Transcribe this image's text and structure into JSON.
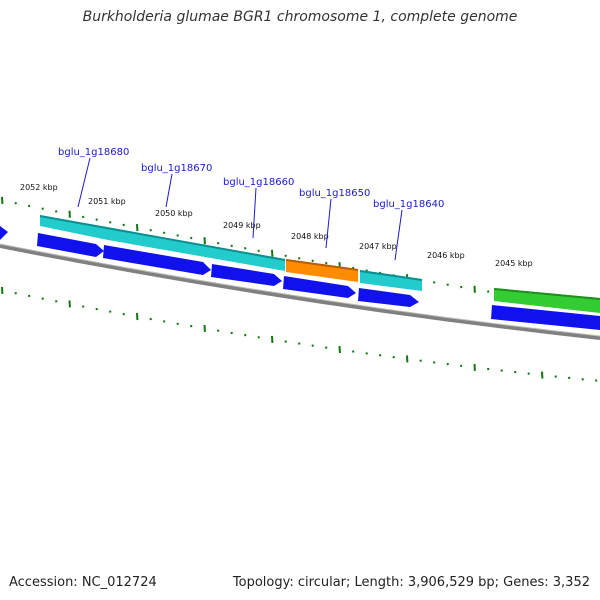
{
  "title": "Burkholderia glumae BGR1 chromosome 1, complete genome",
  "footer": {
    "accession": "Accession: NC_012724",
    "stats": "Topology: circular; Length: 3,906,529 bp; Genes: 3,352"
  },
  "colors": {
    "backbone": "#808080",
    "cds": "#1111ee",
    "gene_cyan": "#22cccc",
    "gene_orange": "#ff8c00",
    "gene_green": "#33cc33",
    "tick": "#117711",
    "gene_label": "#1a1acc"
  },
  "kbp_ticks": [
    "2052 kbp",
    "2051 kbp",
    "2050 kbp",
    "2049 kbp",
    "2048 kbp",
    "2047 kbp",
    "2046 kbp",
    "2045 kbp"
  ],
  "gene_labels": [
    "bglu_1g18680",
    "bglu_1g18670",
    "bglu_1g18660",
    "bglu_1g18650",
    "bglu_1g18640"
  ],
  "features": [
    {
      "type": "gene",
      "color": "cyan"
    },
    {
      "type": "gene",
      "color": "cyan"
    },
    {
      "type": "gene",
      "color": "orange"
    },
    {
      "type": "gene",
      "color": "cyan"
    },
    {
      "type": "gene",
      "color": "green"
    },
    {
      "type": "cds"
    },
    {
      "type": "cds"
    },
    {
      "type": "cds"
    },
    {
      "type": "cds"
    },
    {
      "type": "cds"
    },
    {
      "type": "cds"
    },
    {
      "type": "cds"
    }
  ]
}
